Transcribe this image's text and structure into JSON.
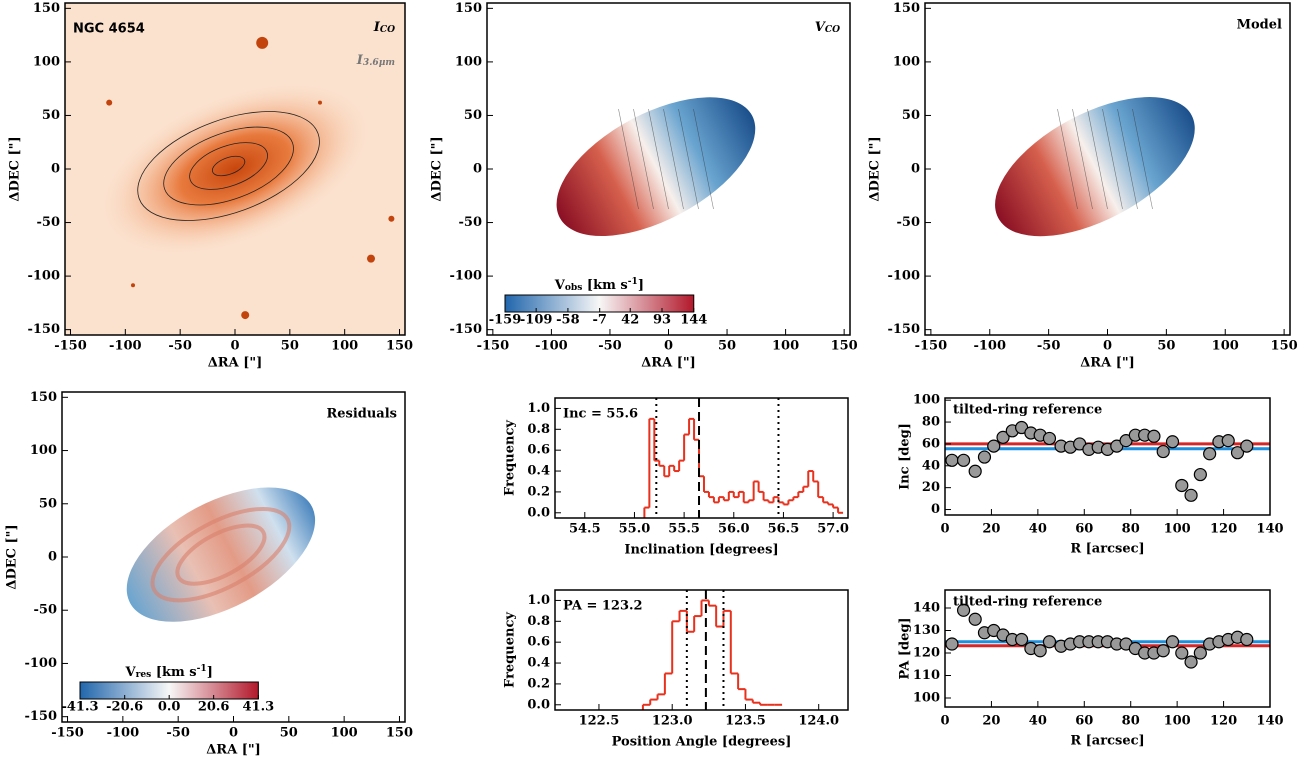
{
  "chart_data": [
    {
      "type": "image",
      "palette": "orange",
      "title": "NGC 4654",
      "title_corner": "left",
      "annotations": [
        {
          "parts": [
            {
              "t": "I"
            },
            {
              "t": "CO",
              "pos": "sub"
            }
          ],
          "color": "#000000"
        },
        {
          "parts": [
            {
              "t": "I"
            },
            {
              "t": "3.6μm",
              "pos": "sub"
            }
          ],
          "color": "#777777"
        }
      ],
      "xlabel": "ΔRA [\"]",
      "ylabel": "ΔDEC [\"]",
      "xlim": [
        -155,
        155
      ],
      "ylim": [
        -155,
        155
      ],
      "xticks": [
        -150,
        -100,
        -50,
        0,
        50,
        100,
        150
      ],
      "yticks": [
        -150,
        -100,
        -50,
        0,
        50,
        100,
        150
      ]
    },
    {
      "type": "image",
      "palette": "velocity",
      "annotations": [
        {
          "parts": [
            {
              "t": "V"
            },
            {
              "t": "CO",
              "pos": "sub"
            }
          ],
          "color": "#000000"
        }
      ],
      "xlabel": "ΔRA [\"]",
      "ylabel": "ΔDEC [\"]",
      "xlim": [
        -155,
        155
      ],
      "ylim": [
        -155,
        155
      ],
      "xticks": [
        -150,
        -100,
        -50,
        0,
        50,
        100,
        150
      ],
      "yticks": [
        -150,
        -100,
        -50,
        0,
        50,
        100,
        150
      ],
      "colorbar": {
        "label": [
          {
            "t": "V"
          },
          {
            "t": "obs",
            "pos": "sub"
          },
          {
            "t": " [km s"
          },
          {
            "t": "-1",
            "pos": "sup"
          },
          {
            "t": "]"
          }
        ],
        "lim": [
          -159,
          144
        ],
        "ticks": [
          -159,
          -109,
          -58,
          -7,
          42,
          93,
          144
        ],
        "colors": [
          "#2166ac",
          "#f7f7f7",
          "#b2182b"
        ]
      }
    },
    {
      "type": "image",
      "palette": "velocity",
      "title": "Model",
      "title_corner": "right",
      "xlabel": "ΔRA [\"]",
      "ylabel": "ΔDEC [\"]",
      "xlim": [
        -155,
        155
      ],
      "ylim": [
        -155,
        155
      ],
      "xticks": [
        -150,
        -100,
        -50,
        0,
        50,
        100,
        150
      ],
      "yticks": [
        -150,
        -100,
        -50,
        0,
        50,
        100,
        150
      ]
    },
    {
      "type": "image",
      "palette": "residual",
      "title": "Residuals",
      "title_corner": "right",
      "xlabel": "ΔRA [\"]",
      "ylabel": "ΔDEC [\"]",
      "xlim": [
        -155,
        155
      ],
      "ylim": [
        -155,
        155
      ],
      "xticks": [
        -150,
        -100,
        -50,
        0,
        50,
        100,
        150
      ],
      "yticks": [
        -150,
        -100,
        -50,
        0,
        50,
        100,
        150
      ],
      "colorbar": {
        "label": [
          {
            "t": "V"
          },
          {
            "t": "res",
            "pos": "sub"
          },
          {
            "t": " [km s"
          },
          {
            "t": "-1",
            "pos": "sup"
          },
          {
            "t": "]"
          }
        ],
        "lim": [
          -41.3,
          41.3
        ],
        "ticks": [
          -41.3,
          -20.6,
          {
            "value": 0,
            "label": "0.0"
          },
          20.6,
          41.3
        ],
        "colors": [
          "#2166ac",
          "#f7f7f7",
          "#b2182b"
        ]
      }
    },
    {
      "type": "histogram",
      "annotation": "Inc = 55.6",
      "xlabel": "Inclination [degrees]",
      "ylabel": "Frequency",
      "color": "#e8301c",
      "bins": [
        55.1,
        55.15,
        55.2,
        55.25,
        55.3,
        55.35,
        55.4,
        55.45,
        55.5,
        55.55,
        55.6,
        55.65,
        55.7,
        55.75,
        55.8,
        55.85,
        55.9,
        55.95,
        56.0,
        56.05,
        56.1,
        56.15,
        56.2,
        56.25,
        56.3,
        56.35,
        56.4,
        56.45,
        56.5,
        56.55,
        56.6,
        56.65,
        56.7,
        56.75,
        56.8,
        56.85,
        56.9,
        56.95,
        57.0,
        57.05,
        57.1
      ],
      "values": [
        0.05,
        0.9,
        0.5,
        0.45,
        0.35,
        0.45,
        0.4,
        0.5,
        0.75,
        0.9,
        0.7,
        0.35,
        0.2,
        0.15,
        0.1,
        0.15,
        0.12,
        0.2,
        0.15,
        0.2,
        0.1,
        0.12,
        0.3,
        0.2,
        0.12,
        0.1,
        0.15,
        0.1,
        0.08,
        0.12,
        0.15,
        0.2,
        0.25,
        0.4,
        0.3,
        0.15,
        0.1,
        0.08,
        0.05,
        0.0
      ],
      "vlines": [
        {
          "value": 55.65,
          "style": "dashed"
        },
        {
          "value": 55.22,
          "style": "dotted"
        },
        {
          "value": 56.45,
          "style": "dotted"
        }
      ],
      "xlim": [
        54.2,
        57.15
      ],
      "ylim": [
        -0.05,
        1.1
      ],
      "xticks": [
        54.5,
        {
          "value": 55,
          "label": "55.0"
        },
        55.5,
        {
          "value": 56,
          "label": "56.0"
        },
        56.5,
        {
          "value": 57,
          "label": "57.0"
        }
      ],
      "yticks": [
        {
          "value": 0,
          "label": "0.0"
        },
        0.2,
        0.4,
        0.6,
        0.8,
        {
          "value": 1,
          "label": "1.0"
        }
      ]
    },
    {
      "type": "histogram",
      "annotation": "PA = 123.2",
      "xlabel": "Position Angle [degrees]",
      "ylabel": "Frequency",
      "color": "#e8301c",
      "bins": [
        122.8,
        122.85,
        122.9,
        122.95,
        123.0,
        123.05,
        123.1,
        123.15,
        123.2,
        123.25,
        123.3,
        123.35,
        123.4,
        123.45,
        123.5,
        123.55,
        123.6,
        123.65,
        123.7,
        123.75
      ],
      "values": [
        0,
        0.05,
        0.1,
        0.3,
        0.8,
        0.9,
        0.7,
        0.85,
        1.0,
        0.95,
        0.75,
        0.9,
        0.3,
        0.15,
        0.05,
        0.02,
        0,
        0,
        0
      ],
      "vlines": [
        {
          "value": 123.23,
          "style": "dashed"
        },
        {
          "value": 123.1,
          "style": "dotted"
        },
        {
          "value": 123.35,
          "style": "dotted"
        }
      ],
      "xlim": [
        122.2,
        124.2
      ],
      "ylim": [
        -0.05,
        1.1
      ],
      "xticks": [
        122.5,
        {
          "value": 123,
          "label": "123.0"
        },
        123.5,
        {
          "value": 124,
          "label": "124.0"
        }
      ],
      "yticks": [
        {
          "value": 0,
          "label": "0.0"
        },
        0.2,
        0.4,
        0.6,
        0.8,
        {
          "value": 1,
          "label": "1.0"
        }
      ]
    },
    {
      "type": "scatter",
      "annotation": "tilted-ring reference",
      "xlabel": "R [arcsec]",
      "ylabel": "Inc [deg]",
      "color": "#999999",
      "x": [
        3,
        8,
        13,
        17,
        21,
        25,
        29,
        33,
        37,
        41,
        45,
        50,
        54,
        58,
        62,
        66,
        70,
        74,
        78,
        82,
        86,
        90,
        94,
        98,
        102,
        106,
        110,
        114,
        118,
        122,
        126,
        130
      ],
      "values": [
        45,
        45,
        35,
        48,
        58,
        66,
        72,
        75,
        70,
        68,
        65,
        58,
        57,
        60,
        55,
        57,
        55,
        58,
        63,
        68,
        68,
        67,
        53,
        62,
        22,
        13,
        32,
        51,
        62,
        63,
        52,
        58
      ],
      "hlines": [
        {
          "value": 60,
          "color": "#d62728"
        },
        {
          "value": 55.6,
          "color": "#1f8fdb"
        }
      ],
      "xlim": [
        0,
        140
      ],
      "ylim": [
        -5,
        102
      ],
      "xticks": [
        0,
        20,
        40,
        60,
        80,
        100,
        120,
        140
      ],
      "yticks": [
        0,
        20,
        40,
        60,
        80,
        100
      ]
    },
    {
      "type": "scatter",
      "annotation": "tilted-ring reference",
      "xlabel": "R [arcsec]",
      "ylabel": "PA [deg]",
      "color": "#999999",
      "x": [
        3,
        8,
        13,
        17,
        21,
        25,
        29,
        33,
        37,
        41,
        45,
        50,
        54,
        58,
        62,
        66,
        70,
        74,
        78,
        82,
        86,
        90,
        94,
        98,
        102,
        106,
        110,
        114,
        118,
        122,
        126,
        130
      ],
      "values": [
        124,
        139,
        135,
        129,
        130,
        128,
        126,
        126,
        122,
        121,
        125,
        123,
        124,
        125,
        125,
        125,
        125,
        124,
        124,
        122,
        120,
        120,
        121,
        125,
        120,
        116,
        120,
        124,
        125,
        126,
        127,
        126
      ],
      "hlines": [
        {
          "value": 123.2,
          "color": "#d62728"
        },
        {
          "value": 125,
          "color": "#1f8fdb"
        }
      ],
      "xlim": [
        0,
        140
      ],
      "ylim": [
        96,
        148
      ],
      "xticks": [
        0,
        20,
        40,
        60,
        80,
        100,
        120,
        140
      ],
      "yticks": [
        100,
        110,
        120,
        130,
        140
      ]
    }
  ]
}
